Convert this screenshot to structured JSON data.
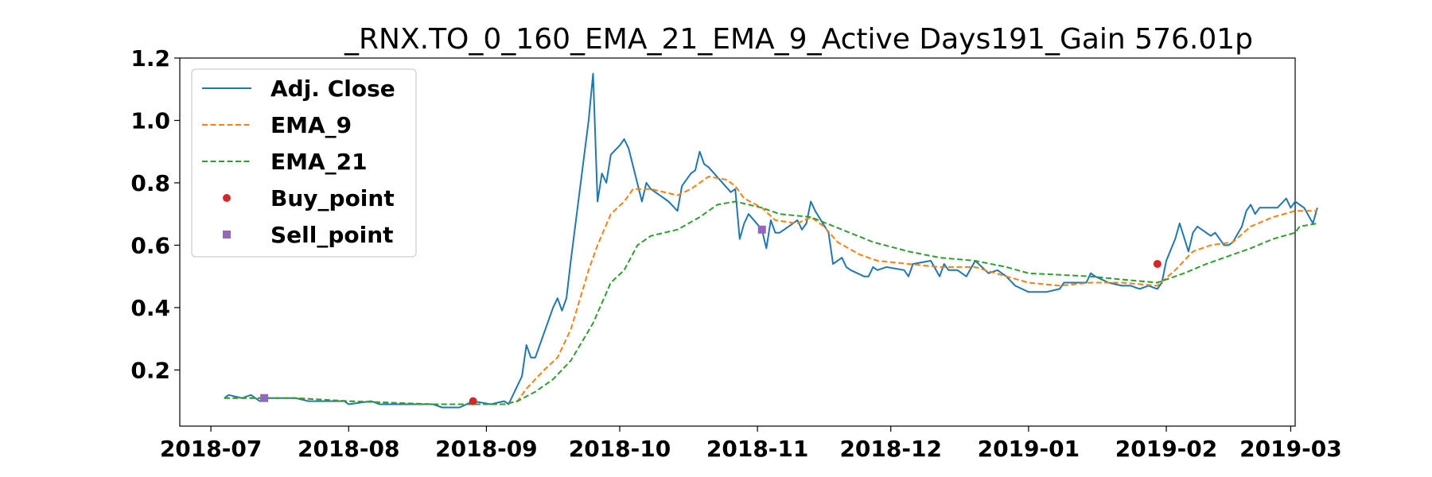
{
  "chart_data": {
    "type": "line",
    "title": "_RNX.TO_0_160_EMA_21_EMA_9_Active Days191_Gain 576.01p",
    "xlabel": "",
    "ylabel": "",
    "xlim": [
      "2018-06-24",
      "2019-03-02"
    ],
    "ylim": [
      0.02,
      1.2
    ],
    "x_ticks": [
      "2018-07",
      "2018-08",
      "2018-09",
      "2018-10",
      "2018-11",
      "2018-12",
      "2019-01",
      "2019-02",
      "2019-03"
    ],
    "y_ticks": [
      0.2,
      0.4,
      0.6,
      0.8,
      1.0,
      1.2
    ],
    "y_tick_labels": [
      "0.2",
      "0.4",
      "0.6",
      "0.8",
      "1.0",
      "1.2"
    ],
    "legend_position": "top-left",
    "grid": false,
    "series": [
      {
        "name": "Adj. Close",
        "style": "solid",
        "color": "#1f77b4",
        "points": [
          [
            "2018-07-04",
            0.11
          ],
          [
            "2018-07-05",
            0.12
          ],
          [
            "2018-07-08",
            0.11
          ],
          [
            "2018-07-10",
            0.12
          ],
          [
            "2018-07-12",
            0.1
          ],
          [
            "2018-07-14",
            0.11
          ],
          [
            "2018-07-20",
            0.11
          ],
          [
            "2018-07-23",
            0.1
          ],
          [
            "2018-07-31",
            0.1
          ],
          [
            "2018-08-01",
            0.09
          ],
          [
            "2018-08-06",
            0.1
          ],
          [
            "2018-08-08",
            0.09
          ],
          [
            "2018-08-15",
            0.09
          ],
          [
            "2018-08-20",
            0.09
          ],
          [
            "2018-08-22",
            0.08
          ],
          [
            "2018-08-26",
            0.08
          ],
          [
            "2018-08-29",
            0.1
          ],
          [
            "2018-09-02",
            0.09
          ],
          [
            "2018-09-05",
            0.1
          ],
          [
            "2018-09-06",
            0.09
          ],
          [
            "2018-09-09",
            0.18
          ],
          [
            "2018-09-10",
            0.28
          ],
          [
            "2018-09-11",
            0.24
          ],
          [
            "2018-09-12",
            0.24
          ],
          [
            "2018-09-16",
            0.4
          ],
          [
            "2018-09-17",
            0.43
          ],
          [
            "2018-09-18",
            0.39
          ],
          [
            "2018-09-19",
            0.43
          ],
          [
            "2018-09-20",
            0.55
          ],
          [
            "2018-09-24",
            1.0
          ],
          [
            "2018-09-25",
            1.15
          ],
          [
            "2018-09-26",
            0.74
          ],
          [
            "2018-09-27",
            0.83
          ],
          [
            "2018-09-28",
            0.8
          ],
          [
            "2018-09-29",
            0.89
          ],
          [
            "2018-10-01",
            0.92
          ],
          [
            "2018-10-02",
            0.94
          ],
          [
            "2018-10-03",
            0.91
          ],
          [
            "2018-10-06",
            0.74
          ],
          [
            "2018-10-07",
            0.8
          ],
          [
            "2018-10-08",
            0.78
          ],
          [
            "2018-10-10",
            0.76
          ],
          [
            "2018-10-12",
            0.74
          ],
          [
            "2018-10-14",
            0.71
          ],
          [
            "2018-10-15",
            0.79
          ],
          [
            "2018-10-17",
            0.83
          ],
          [
            "2018-10-18",
            0.84
          ],
          [
            "2018-10-19",
            0.9
          ],
          [
            "2018-10-20",
            0.86
          ],
          [
            "2018-10-21",
            0.85
          ],
          [
            "2018-10-26",
            0.77
          ],
          [
            "2018-10-27",
            0.78
          ],
          [
            "2018-10-28",
            0.62
          ],
          [
            "2018-10-29",
            0.67
          ],
          [
            "2018-10-30",
            0.7
          ],
          [
            "2018-11-02",
            0.65
          ],
          [
            "2018-11-03",
            0.59
          ],
          [
            "2018-11-04",
            0.68
          ],
          [
            "2018-11-05",
            0.64
          ],
          [
            "2018-11-06",
            0.64
          ],
          [
            "2018-11-08",
            0.66
          ],
          [
            "2018-11-10",
            0.68
          ],
          [
            "2018-11-11",
            0.65
          ],
          [
            "2018-11-12",
            0.67
          ],
          [
            "2018-11-13",
            0.74
          ],
          [
            "2018-11-14",
            0.71
          ],
          [
            "2018-11-17",
            0.64
          ],
          [
            "2018-11-18",
            0.54
          ],
          [
            "2018-11-20",
            0.56
          ],
          [
            "2018-11-21",
            0.53
          ],
          [
            "2018-11-22",
            0.52
          ],
          [
            "2018-11-25",
            0.5
          ],
          [
            "2018-11-26",
            0.5
          ],
          [
            "2018-11-27",
            0.53
          ],
          [
            "2018-11-28",
            0.52
          ],
          [
            "2018-11-30",
            0.53
          ],
          [
            "2018-12-04",
            0.52
          ],
          [
            "2018-12-05",
            0.5
          ],
          [
            "2018-12-06",
            0.54
          ],
          [
            "2018-12-10",
            0.55
          ],
          [
            "2018-12-12",
            0.5
          ],
          [
            "2018-12-13",
            0.54
          ],
          [
            "2018-12-14",
            0.52
          ],
          [
            "2018-12-16",
            0.52
          ],
          [
            "2018-12-18",
            0.5
          ],
          [
            "2018-12-20",
            0.55
          ],
          [
            "2018-12-23",
            0.51
          ],
          [
            "2018-12-25",
            0.52
          ],
          [
            "2018-12-27",
            0.5
          ],
          [
            "2018-12-29",
            0.47
          ],
          [
            "2019-01-01",
            0.45
          ],
          [
            "2019-01-05",
            0.45
          ],
          [
            "2019-01-08",
            0.46
          ],
          [
            "2019-01-09",
            0.48
          ],
          [
            "2019-01-12",
            0.48
          ],
          [
            "2019-01-14",
            0.48
          ],
          [
            "2019-01-15",
            0.51
          ],
          [
            "2019-01-16",
            0.5
          ],
          [
            "2019-01-19",
            0.48
          ],
          [
            "2019-01-22",
            0.47
          ],
          [
            "2019-01-24",
            0.47
          ],
          [
            "2019-01-26",
            0.46
          ],
          [
            "2019-01-28",
            0.47
          ],
          [
            "2019-01-30",
            0.46
          ],
          [
            "2019-01-31",
            0.48
          ],
          [
            "2019-02-01",
            0.55
          ],
          [
            "2019-02-03",
            0.62
          ],
          [
            "2019-02-04",
            0.67
          ],
          [
            "2019-02-06",
            0.58
          ],
          [
            "2019-02-07",
            0.64
          ],
          [
            "2019-02-08",
            0.66
          ],
          [
            "2019-02-11",
            0.63
          ],
          [
            "2019-02-12",
            0.64
          ],
          [
            "2019-02-14",
            0.6
          ],
          [
            "2019-02-15",
            0.6
          ],
          [
            "2019-02-16",
            0.61
          ],
          [
            "2019-02-18",
            0.66
          ],
          [
            "2019-02-19",
            0.71
          ],
          [
            "2019-02-20",
            0.73
          ],
          [
            "2019-02-21",
            0.7
          ],
          [
            "2019-02-22",
            0.72
          ],
          [
            "2019-02-26",
            0.72
          ],
          [
            "2019-02-28",
            0.75
          ],
          [
            "2019-02-29",
            0.72
          ],
          [
            "2019-02-30",
            0.74
          ],
          [
            "2019-03-04",
            0.72
          ],
          [
            "2019-03-06",
            0.67
          ],
          [
            "2019-03-07",
            0.72
          ]
        ]
      },
      {
        "name": "EMA_9",
        "style": "dashed",
        "color": "#ff7f0e",
        "points": [
          [
            "2018-07-04",
            0.11
          ],
          [
            "2018-07-20",
            0.11
          ],
          [
            "2018-08-01",
            0.1
          ],
          [
            "2018-08-20",
            0.09
          ],
          [
            "2018-08-29",
            0.09
          ],
          [
            "2018-09-05",
            0.09
          ],
          [
            "2018-09-08",
            0.1
          ],
          [
            "2018-09-10",
            0.14
          ],
          [
            "2018-09-14",
            0.2
          ],
          [
            "2018-09-17",
            0.24
          ],
          [
            "2018-09-20",
            0.33
          ],
          [
            "2018-09-24",
            0.52
          ],
          [
            "2018-09-26",
            0.6
          ],
          [
            "2018-09-29",
            0.7
          ],
          [
            "2018-10-02",
            0.74
          ],
          [
            "2018-10-04",
            0.78
          ],
          [
            "2018-10-08",
            0.78
          ],
          [
            "2018-10-14",
            0.76
          ],
          [
            "2018-10-17",
            0.78
          ],
          [
            "2018-10-21",
            0.82
          ],
          [
            "2018-10-25",
            0.81
          ],
          [
            "2018-10-27",
            0.79
          ],
          [
            "2018-10-29",
            0.75
          ],
          [
            "2018-11-02",
            0.72
          ],
          [
            "2018-11-05",
            0.68
          ],
          [
            "2018-11-10",
            0.67
          ],
          [
            "2018-11-13",
            0.69
          ],
          [
            "2018-11-16",
            0.66
          ],
          [
            "2018-11-19",
            0.61
          ],
          [
            "2018-11-24",
            0.57
          ],
          [
            "2018-11-28",
            0.55
          ],
          [
            "2018-12-05",
            0.54
          ],
          [
            "2018-12-12",
            0.53
          ],
          [
            "2018-12-20",
            0.53
          ],
          [
            "2018-12-27",
            0.5
          ],
          [
            "2019-01-01",
            0.48
          ],
          [
            "2019-01-08",
            0.47
          ],
          [
            "2019-01-15",
            0.48
          ],
          [
            "2019-01-22",
            0.48
          ],
          [
            "2019-01-30",
            0.47
          ],
          [
            "2019-02-03",
            0.52
          ],
          [
            "2019-02-07",
            0.58
          ],
          [
            "2019-02-11",
            0.6
          ],
          [
            "2019-02-16",
            0.61
          ],
          [
            "2019-02-20",
            0.66
          ],
          [
            "2019-02-25",
            0.69
          ],
          [
            "2019-02-30",
            0.71
          ],
          [
            "2019-03-07",
            0.71
          ]
        ]
      },
      {
        "name": "EMA_21",
        "style": "dashed",
        "color": "#2ca02c",
        "points": [
          [
            "2018-07-04",
            0.11
          ],
          [
            "2018-07-20",
            0.11
          ],
          [
            "2018-08-01",
            0.1
          ],
          [
            "2018-08-20",
            0.09
          ],
          [
            "2018-08-29",
            0.09
          ],
          [
            "2018-09-05",
            0.09
          ],
          [
            "2018-09-08",
            0.1
          ],
          [
            "2018-09-12",
            0.13
          ],
          [
            "2018-09-16",
            0.17
          ],
          [
            "2018-09-20",
            0.23
          ],
          [
            "2018-09-25",
            0.35
          ],
          [
            "2018-09-29",
            0.48
          ],
          [
            "2018-10-02",
            0.52
          ],
          [
            "2018-10-05",
            0.6
          ],
          [
            "2018-10-08",
            0.63
          ],
          [
            "2018-10-14",
            0.65
          ],
          [
            "2018-10-19",
            0.69
          ],
          [
            "2018-10-23",
            0.73
          ],
          [
            "2018-10-27",
            0.74
          ],
          [
            "2018-11-02",
            0.72
          ],
          [
            "2018-11-06",
            0.7
          ],
          [
            "2018-11-13",
            0.69
          ],
          [
            "2018-11-20",
            0.65
          ],
          [
            "2018-11-27",
            0.61
          ],
          [
            "2018-12-05",
            0.58
          ],
          [
            "2018-12-12",
            0.56
          ],
          [
            "2018-12-20",
            0.55
          ],
          [
            "2018-12-27",
            0.53
          ],
          [
            "2019-01-01",
            0.51
          ],
          [
            "2019-01-15",
            0.5
          ],
          [
            "2019-01-22",
            0.49
          ],
          [
            "2019-01-30",
            0.48
          ],
          [
            "2019-02-05",
            0.51
          ],
          [
            "2019-02-10",
            0.54
          ],
          [
            "2019-02-16",
            0.57
          ],
          [
            "2019-02-20",
            0.59
          ],
          [
            "2019-02-25",
            0.62
          ],
          [
            "2019-02-30",
            0.64
          ],
          [
            "2019-03-03",
            0.66
          ],
          [
            "2019-03-07",
            0.67
          ]
        ]
      },
      {
        "name": "Buy_point",
        "style": "marker-circle",
        "color": "#d62728",
        "points": [
          [
            "2018-08-29",
            0.1
          ],
          [
            "2019-01-30",
            0.54
          ]
        ]
      },
      {
        "name": "Sell_point",
        "style": "marker-square",
        "color": "#9467bd",
        "points": [
          [
            "2018-07-13",
            0.11
          ],
          [
            "2018-11-02",
            0.65
          ]
        ]
      }
    ]
  }
}
